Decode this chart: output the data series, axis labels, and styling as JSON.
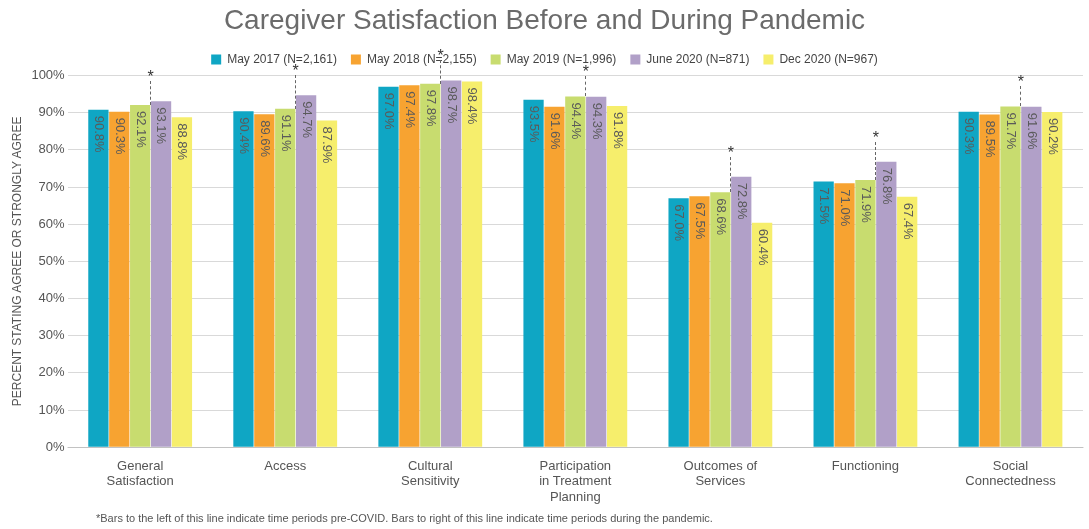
{
  "chart_data": {
    "type": "bar",
    "title": "Caregiver Satisfaction Before and During Pandemic",
    "ylabel": "PERCENT STATING AGREE OR STRONGLY AGREE",
    "categories": [
      "General Satisfaction",
      "Access",
      "Cultural Sensitivity",
      "Participation in Treatment Planning",
      "Outcomes of Services",
      "Functioning",
      "Social Connectedness"
    ],
    "series": [
      {
        "name": "May 2017 (N=2,161)",
        "color": "#0fa6c4",
        "values": [
          90.8,
          90.4,
          97.0,
          93.5,
          67.0,
          71.5,
          90.3
        ],
        "value_labels": [
          "90.8%",
          "90.4%",
          "97.0%",
          "93.5%",
          "67.0%",
          "71.5%",
          "90.3%"
        ]
      },
      {
        "name": "May 2018 (N=2,155)",
        "color": "#f7a331",
        "values": [
          90.3,
          89.6,
          97.4,
          91.6,
          67.5,
          71.0,
          89.5
        ],
        "value_labels": [
          "90.3%",
          "89.6%",
          "97.4%",
          "91.6%",
          "67.5%",
          "71.0%",
          "89.5%"
        ]
      },
      {
        "name": "May 2019 (N=1,996)",
        "color": "#c8dc6f",
        "values": [
          92.1,
          91.1,
          97.8,
          94.4,
          68.6,
          71.9,
          91.7
        ],
        "value_labels": [
          "92.1%",
          "91.1%",
          "97.8%",
          "94.4%",
          "68.6%",
          "71.9%",
          "91.7%"
        ]
      },
      {
        "name": "June 2020 (N=871)",
        "color": "#b1a0c8",
        "values": [
          93.1,
          94.7,
          98.7,
          94.3,
          72.8,
          76.8,
          91.6
        ],
        "value_labels": [
          "93.1%",
          "94.7%",
          "98.7%",
          "94.3%",
          "72.8%",
          "76.8%",
          "91.6%"
        ]
      },
      {
        "name": "Dec 2020 (N=967)",
        "color": "#f6ee6c",
        "values": [
          88.8,
          87.9,
          98.4,
          91.8,
          60.4,
          67.4,
          90.2
        ],
        "value_labels": [
          "88.8%",
          "87.9%",
          "98.4%",
          "91.8%",
          "60.4%",
          "67.4%",
          "90.2%"
        ]
      }
    ],
    "ylim": [
      0,
      100
    ],
    "yticks": [
      {
        "value": 0,
        "label": "0%"
      },
      {
        "value": 10,
        "label": "10%"
      },
      {
        "value": 20,
        "label": "20%"
      },
      {
        "value": 30,
        "label": "30%"
      },
      {
        "value": 40,
        "label": "40%"
      },
      {
        "value": 50,
        "label": "50%"
      },
      {
        "value": 60,
        "label": "60%"
      },
      {
        "value": 70,
        "label": "70%"
      },
      {
        "value": 80,
        "label": "80%"
      },
      {
        "value": 90,
        "label": "90%"
      },
      {
        "value": 100,
        "label": "100%"
      }
    ],
    "grid": "y",
    "legend": "top",
    "annotations": [
      "*",
      "*",
      "*",
      "*",
      "*",
      "*",
      "*",
      "*Bars to the left of this line indicate time periods pre-COVID. Bars to right of this line indicate time periods during the pandemic."
    ]
  }
}
